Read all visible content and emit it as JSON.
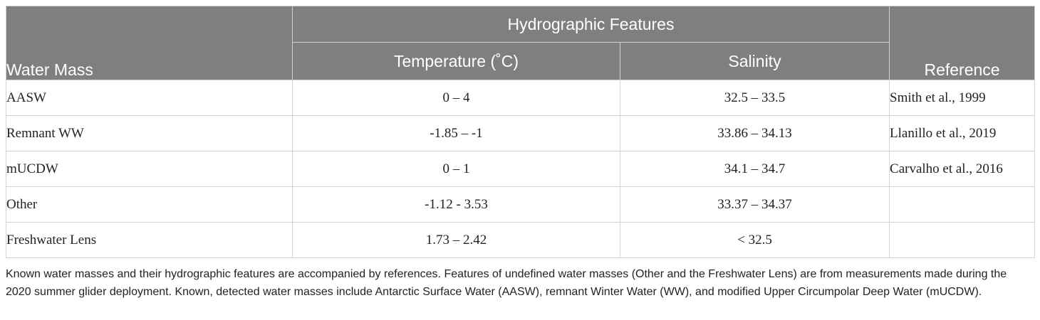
{
  "table": {
    "header": {
      "water_mass": "Water Mass",
      "group": "Hydrographic Features",
      "temperature": "Temperature (˚C)",
      "salinity": "Salinity",
      "reference": "Reference"
    },
    "rows": [
      {
        "water_mass": "AASW",
        "temperature": "0 – 4",
        "salinity": "32.5 – 33.5",
        "reference": "Smith et al., 1999"
      },
      {
        "water_mass": "Remnant WW",
        "temperature": "-1.85 – -1",
        "salinity": "33.86 – 34.13",
        "reference": "Llanillo et al., 2019"
      },
      {
        "water_mass": "mUCDW",
        "temperature": "0 – 1",
        "salinity": "34.1 – 34.7",
        "reference": "Carvalho et al., 2016"
      },
      {
        "water_mass": "Other",
        "temperature": "-1.12 - 3.53",
        "salinity": "33.37 – 34.37",
        "reference": ""
      },
      {
        "water_mass": "Freshwater Lens",
        "temperature": "1.73 – 2.42",
        "salinity": "< 32.5",
        "reference": ""
      }
    ]
  },
  "caption": "Known water masses and their hydrographic features are accompanied by references. Features of undefined water masses (Other and the Freshwater Lens) are from measurements made during the 2020 summer glider deployment. Known, detected water masses include Antarctic Surface Water (AASW), remnant Winter Water (WW), and modified Upper Circumpolar Deep Water (mUCDW).",
  "colors": {
    "header_bg": "#7f7f7f",
    "link": "#1aa7c4"
  }
}
